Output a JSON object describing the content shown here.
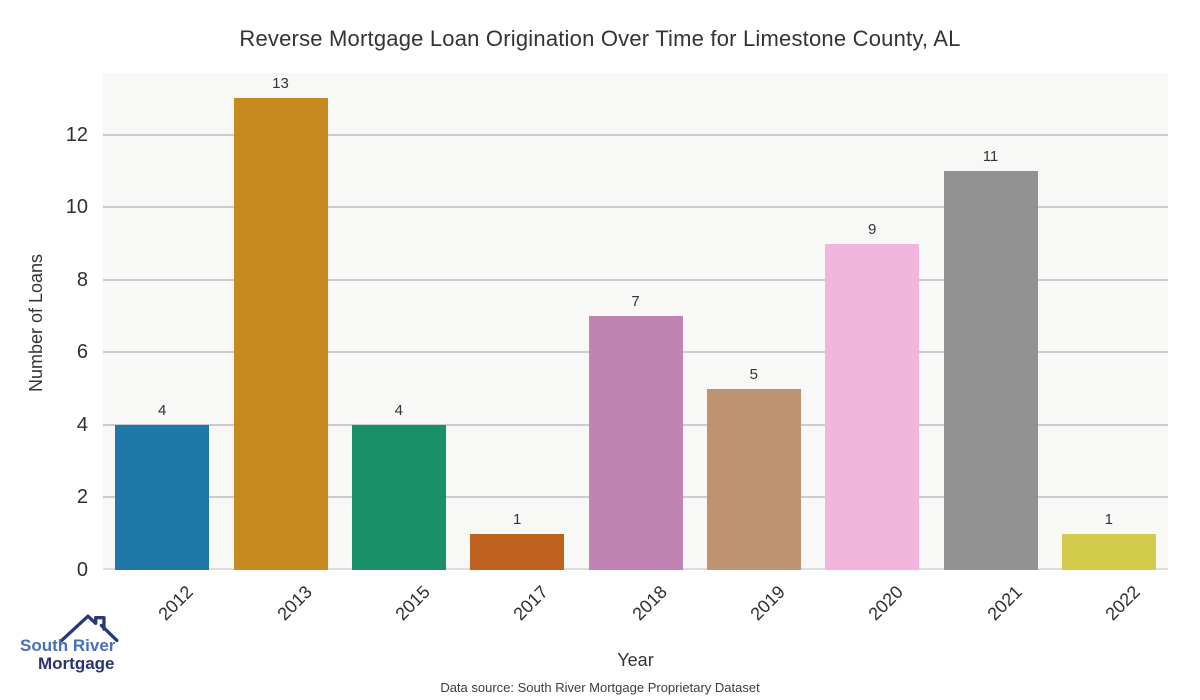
{
  "title": "Reverse Mortgage Loan Origination Over Time for Limestone County, AL",
  "chart_data": {
    "type": "bar",
    "categories": [
      "2012",
      "2013",
      "2015",
      "2017",
      "2018",
      "2019",
      "2020",
      "2021",
      "2022"
    ],
    "values": [
      4,
      13,
      4,
      1,
      7,
      5,
      9,
      11,
      1
    ],
    "bar_colors": [
      "#1f78a9",
      "#c8891e",
      "#1a9069",
      "#bf6220",
      "#c083b4",
      "#bd9371",
      "#f2b6de",
      "#929292",
      "#d3cb4b"
    ],
    "title": "Reverse Mortgage Loan Origination Over Time for Limestone County, AL",
    "xlabel": "Year",
    "ylabel": "Number of Loans",
    "ylim": [
      0,
      13.7
    ],
    "yticks": [
      0,
      2,
      4,
      6,
      8,
      10,
      12
    ],
    "grid": "horizontal-only",
    "legend": "none",
    "panel_bg": "#f8f8f7",
    "gridline_color": "#cccccc",
    "value_labels_shown": true
  },
  "footer": {
    "data_source": "Data source: South River Mortgage Proprietary Dataset"
  },
  "logo": {
    "line1": "South River",
    "line2": "Mortgage",
    "line1_color": "#4a6fb8",
    "line2_color": "#2b3373",
    "roof_color": "#2b3878"
  }
}
